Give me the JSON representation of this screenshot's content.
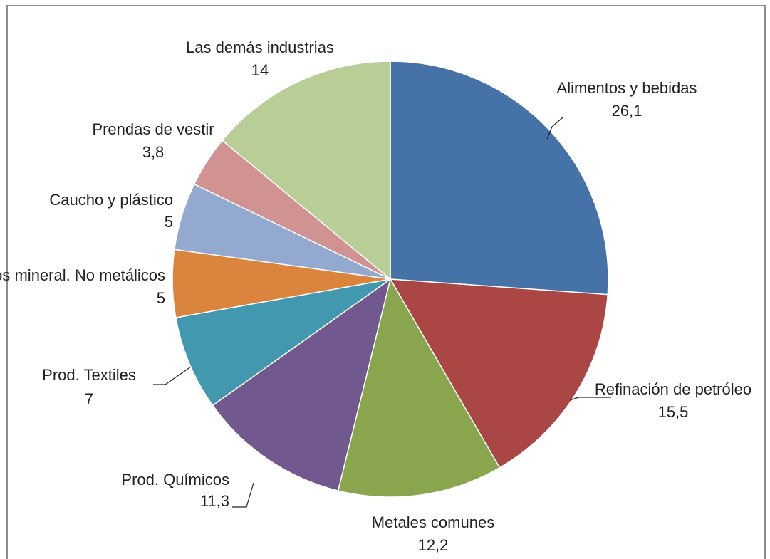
{
  "chart_data": {
    "type": "pie",
    "categories": [
      "Alimentos y bebidas",
      "Refinación de petróleo",
      "Metales comunes",
      "Prod. Químicos",
      "Prod. Textiles",
      "Otros mineral. No metálicos",
      "Caucho y plástico",
      "Prendas de vestir",
      "Las demás industrias"
    ],
    "values": [
      26.1,
      15.5,
      12.2,
      11.3,
      7,
      5,
      5,
      3.8,
      14
    ],
    "value_labels": [
      "26,1",
      "15,5",
      "12,2",
      "11,3",
      "7",
      "5",
      "5",
      "3,8",
      "14"
    ],
    "colors": [
      "#4572a7",
      "#aa4643",
      "#89a54e",
      "#71588f",
      "#4198af",
      "#db843d",
      "#93a9cf",
      "#d19392",
      "#b9cd96"
    ]
  }
}
